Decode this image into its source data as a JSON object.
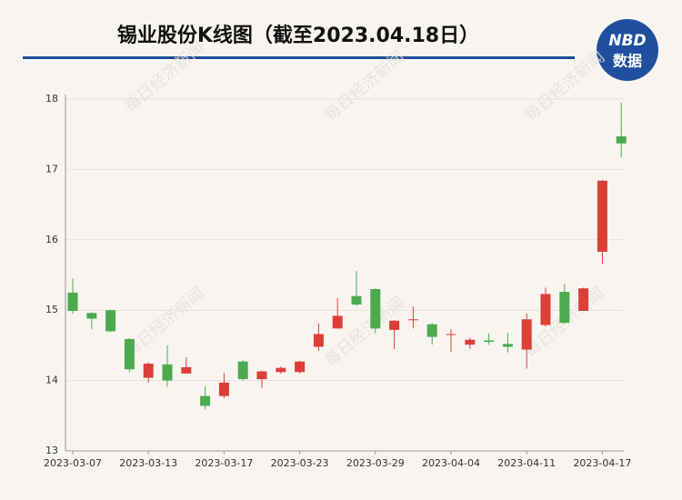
{
  "chart_data": {
    "type": "candlestick",
    "title": "锡业股份K线图（截至2023.04.18日）",
    "logo": {
      "top": "NBD",
      "bottom": "数据"
    },
    "watermark": "每日经济新闻",
    "categories": [
      "2023-03-07",
      null,
      null,
      null,
      "2023-03-13",
      null,
      null,
      null,
      "2023-03-17",
      null,
      null,
      null,
      "2023-03-23",
      null,
      null,
      null,
      "2023-03-29",
      null,
      null,
      null,
      "2023-04-04",
      null,
      null,
      null,
      "2023-04-11",
      null,
      null,
      null,
      "2023-04-17",
      null
    ],
    "open": [
      15.25,
      14.96,
      15.0,
      14.59,
      14.04,
      14.23,
      14.1,
      13.78,
      13.78,
      14.27,
      14.02,
      14.12,
      14.12,
      14.48,
      14.74,
      15.2,
      15.3,
      14.72,
      14.86,
      14.8,
      14.65,
      14.51,
      14.57,
      14.52,
      14.44,
      14.79,
      15.26,
      14.99,
      15.83,
      17.47
    ],
    "high": [
      15.45,
      14.97,
      15.01,
      14.6,
      14.26,
      14.5,
      14.33,
      13.92,
      14.11,
      14.29,
      14.14,
      14.2,
      14.28,
      14.81,
      15.17,
      15.56,
      15.31,
      14.86,
      15.05,
      14.82,
      14.73,
      14.61,
      14.67,
      14.68,
      14.95,
      15.32,
      15.37,
      15.32,
      16.85,
      17.95
    ],
    "low": [
      14.95,
      14.73,
      14.69,
      14.12,
      13.97,
      13.91,
      14.1,
      13.59,
      13.75,
      14.0,
      13.89,
      14.1,
      14.1,
      14.42,
      14.74,
      15.06,
      14.67,
      14.45,
      14.74,
      14.51,
      14.41,
      14.45,
      14.51,
      14.4,
      14.17,
      14.77,
      14.8,
      14.99,
      15.66,
      17.17
    ],
    "close": [
      14.99,
      14.88,
      14.7,
      14.16,
      14.24,
      14.0,
      14.19,
      13.64,
      13.97,
      14.02,
      14.13,
      14.18,
      14.27,
      14.66,
      14.92,
      15.08,
      14.74,
      14.85,
      14.87,
      14.62,
      14.66,
      14.58,
      14.55,
      14.48,
      14.87,
      15.23,
      14.82,
      15.31,
      16.84,
      17.37
    ],
    "up_color": "#dc3f38",
    "down_color": "#4caa4f",
    "ylim": [
      13,
      18
    ],
    "yticks": [
      13,
      14,
      15,
      16,
      17,
      18
    ],
    "grid": true
  }
}
